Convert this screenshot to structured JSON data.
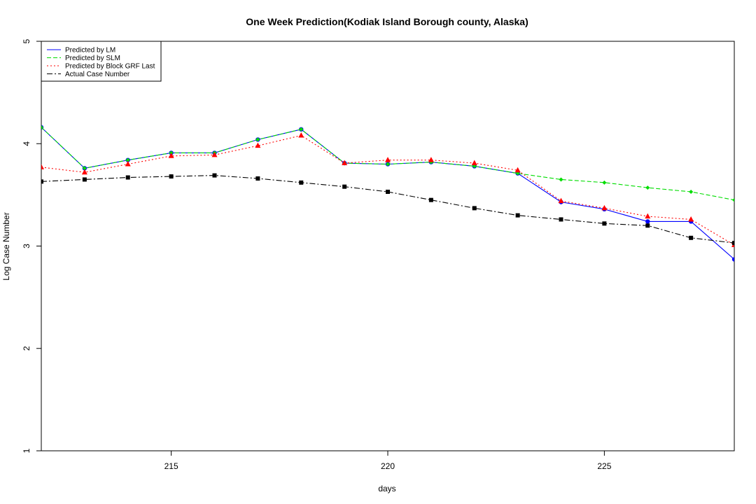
{
  "chart_data": {
    "type": "line",
    "title": "One Week Prediction(Kodiak Island Borough county, Alaska)",
    "xlabel": "days",
    "ylabel": "Log Case Number",
    "xlim": [
      212,
      228
    ],
    "ylim": [
      1,
      5
    ],
    "x_ticks": [
      215,
      220,
      225
    ],
    "y_ticks": [
      1,
      2,
      3,
      4,
      5
    ],
    "grid": false,
    "legend_position": "top-left",
    "x": [
      212,
      213,
      214,
      215,
      216,
      217,
      218,
      219,
      220,
      221,
      222,
      223,
      224,
      225,
      226,
      227,
      228
    ],
    "series": [
      {
        "name": "Predicted by LM",
        "color": "#0000ff",
        "line_style": "solid",
        "marker": "circle",
        "values": [
          4.16,
          3.76,
          3.84,
          3.91,
          3.91,
          4.04,
          4.14,
          3.81,
          3.8,
          3.82,
          3.78,
          3.71,
          3.43,
          3.36,
          3.24,
          3.24,
          2.87
        ]
      },
      {
        "name": "Predicted by SLM",
        "color": "#00dd00",
        "line_style": "dashed",
        "marker": "diamond",
        "values": [
          4.16,
          3.76,
          3.84,
          3.91,
          3.91,
          4.04,
          4.14,
          3.81,
          3.8,
          3.82,
          3.78,
          3.71,
          3.65,
          3.62,
          3.57,
          3.53,
          3.45
        ]
      },
      {
        "name": "Predicted by Block GRF Last",
        "color": "#ff0000",
        "line_style": "dotted",
        "marker": "triangle",
        "values": [
          3.77,
          3.72,
          3.8,
          3.88,
          3.89,
          3.98,
          4.08,
          3.81,
          3.84,
          3.84,
          3.81,
          3.74,
          3.44,
          3.37,
          3.29,
          3.26,
          3.01
        ]
      },
      {
        "name": "Actual Case Number",
        "color": "#000000",
        "line_style": "dashdot",
        "marker": "square",
        "values": [
          3.63,
          3.65,
          3.67,
          3.68,
          3.69,
          3.66,
          3.62,
          3.58,
          3.53,
          3.45,
          3.37,
          3.3,
          3.26,
          3.22,
          3.2,
          3.08,
          3.03
        ]
      }
    ]
  }
}
